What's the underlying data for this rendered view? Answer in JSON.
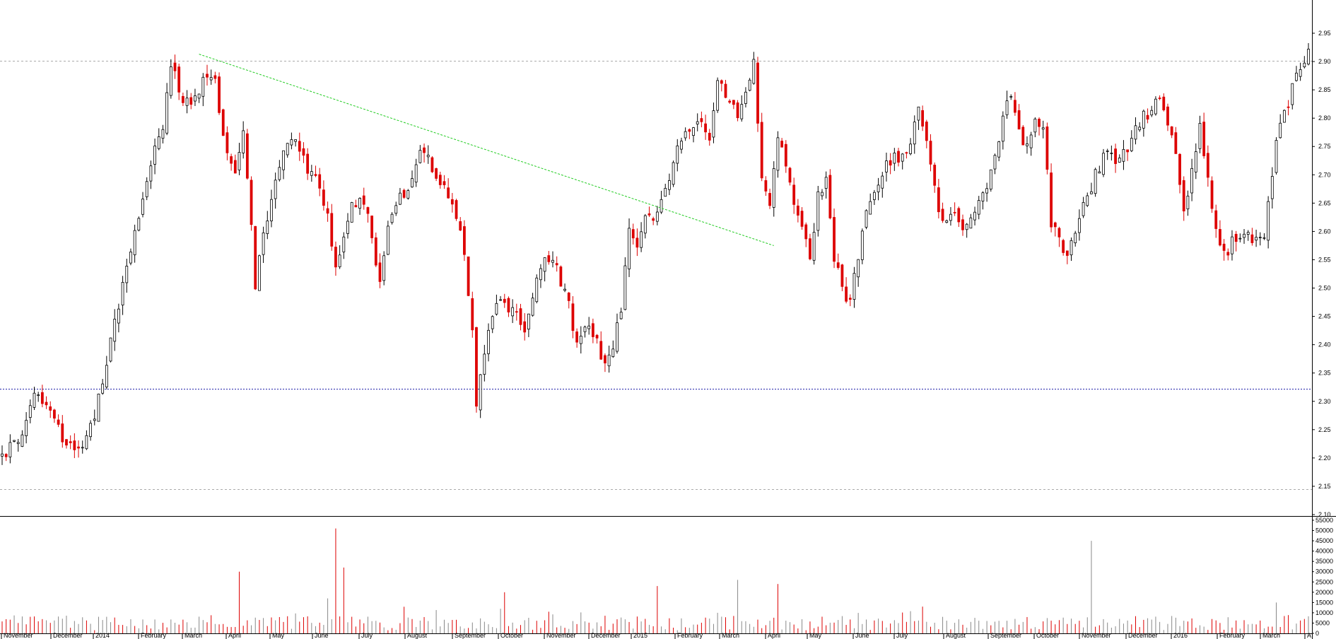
{
  "chart_data": [
    {
      "type": "candlestick",
      "panel": "price",
      "x_axis_months": [
        "November",
        "December",
        "2014",
        "February",
        "March",
        "April",
        "May",
        "June",
        "July",
        "August",
        "September",
        "October",
        "November",
        "December",
        "2015",
        "February",
        "March",
        "April",
        "May",
        "June",
        "July",
        "August",
        "September",
        "October",
        "November",
        "December",
        "2016",
        "February",
        "March",
        "A"
      ],
      "y_ticks": [
        "2.10",
        "2.15",
        "2.20",
        "2.25",
        "2.30",
        "2.35",
        "2.40",
        "2.45",
        "2.50",
        "2.55",
        "2.60",
        "2.65",
        "2.70",
        "2.75",
        "2.80",
        "2.85",
        "2.90",
        "2.95"
      ],
      "ylim": [
        2.1,
        2.98
      ],
      "up_color": "#000000",
      "down_color": "#dd0000",
      "trend_points": [
        [
          0,
          2.21
        ],
        [
          5,
          2.23
        ],
        [
          8,
          2.32
        ],
        [
          12,
          2.28
        ],
        [
          15,
          2.24
        ],
        [
          19,
          2.22
        ],
        [
          22,
          2.25
        ],
        [
          27,
          2.4
        ],
        [
          30,
          2.5
        ],
        [
          33,
          2.6
        ],
        [
          37,
          2.72
        ],
        [
          40,
          2.78
        ],
        [
          42,
          2.9
        ],
        [
          45,
          2.82
        ],
        [
          48,
          2.84
        ],
        [
          50,
          2.87
        ],
        [
          53,
          2.86
        ],
        [
          56,
          2.74
        ],
        [
          58,
          2.7
        ],
        [
          60,
          2.78
        ],
        [
          62,
          2.62
        ],
        [
          63,
          2.5
        ],
        [
          65,
          2.6
        ],
        [
          67,
          2.65
        ],
        [
          70,
          2.75
        ],
        [
          73,
          2.77
        ],
        [
          76,
          2.7
        ],
        [
          79,
          2.68
        ],
        [
          81,
          2.62
        ],
        [
          83,
          2.54
        ],
        [
          85,
          2.58
        ],
        [
          87,
          2.65
        ],
        [
          90,
          2.66
        ],
        [
          92,
          2.58
        ],
        [
          94,
          2.52
        ],
        [
          96,
          2.6
        ],
        [
          98,
          2.65
        ],
        [
          101,
          2.67
        ],
        [
          103,
          2.72
        ],
        [
          105,
          2.75
        ],
        [
          107,
          2.7
        ],
        [
          110,
          2.68
        ],
        [
          113,
          2.63
        ],
        [
          115,
          2.55
        ],
        [
          117,
          2.43
        ],
        [
          118,
          2.3
        ],
        [
          120,
          2.38
        ],
        [
          122,
          2.46
        ],
        [
          125,
          2.48
        ],
        [
          128,
          2.45
        ],
        [
          130,
          2.42
        ],
        [
          133,
          2.53
        ],
        [
          136,
          2.55
        ],
        [
          138,
          2.53
        ],
        [
          141,
          2.47
        ],
        [
          143,
          2.4
        ],
        [
          145,
          2.44
        ],
        [
          148,
          2.4
        ],
        [
          150,
          2.36
        ],
        [
          152,
          2.4
        ],
        [
          154,
          2.47
        ],
        [
          156,
          2.6
        ],
        [
          158,
          2.56
        ],
        [
          160,
          2.62
        ],
        [
          163,
          2.63
        ],
        [
          165,
          2.68
        ],
        [
          168,
          2.74
        ],
        [
          170,
          2.78
        ],
        [
          173,
          2.8
        ],
        [
          176,
          2.76
        ],
        [
          178,
          2.87
        ],
        [
          180,
          2.84
        ],
        [
          183,
          2.8
        ],
        [
          185,
          2.85
        ],
        [
          187,
          2.9
        ],
        [
          189,
          2.7
        ],
        [
          191,
          2.64
        ],
        [
          193,
          2.76
        ],
        [
          195,
          2.72
        ],
        [
          197,
          2.66
        ],
        [
          199,
          2.6
        ],
        [
          201,
          2.55
        ],
        [
          203,
          2.66
        ],
        [
          205,
          2.7
        ],
        [
          207,
          2.55
        ],
        [
          209,
          2.5
        ],
        [
          211,
          2.47
        ],
        [
          213,
          2.56
        ],
        [
          215,
          2.63
        ],
        [
          218,
          2.68
        ],
        [
          220,
          2.72
        ],
        [
          223,
          2.73
        ],
        [
          226,
          2.76
        ],
        [
          228,
          2.83
        ],
        [
          230,
          2.76
        ],
        [
          232,
          2.67
        ],
        [
          234,
          2.62
        ],
        [
          237,
          2.64
        ],
        [
          239,
          2.6
        ],
        [
          241,
          2.62
        ],
        [
          244,
          2.66
        ],
        [
          247,
          2.73
        ],
        [
          249,
          2.8
        ],
        [
          251,
          2.84
        ],
        [
          253,
          2.78
        ],
        [
          255,
          2.75
        ],
        [
          257,
          2.79
        ],
        [
          259,
          2.78
        ],
        [
          261,
          2.62
        ],
        [
          263,
          2.58
        ],
        [
          265,
          2.56
        ],
        [
          267,
          2.6
        ],
        [
          270,
          2.66
        ],
        [
          272,
          2.7
        ],
        [
          275,
          2.74
        ],
        [
          277,
          2.72
        ],
        [
          280,
          2.75
        ],
        [
          283,
          2.79
        ],
        [
          286,
          2.82
        ],
        [
          288,
          2.84
        ],
        [
          290,
          2.8
        ],
        [
          292,
          2.74
        ],
        [
          294,
          2.63
        ],
        [
          296,
          2.72
        ],
        [
          298,
          2.78
        ],
        [
          300,
          2.7
        ],
        [
          302,
          2.6
        ],
        [
          304,
          2.56
        ],
        [
          306,
          2.58
        ],
        [
          309,
          2.6
        ],
        [
          312,
          2.58
        ],
        [
          314,
          2.6
        ],
        [
          316,
          2.7
        ],
        [
          318,
          2.8
        ],
        [
          320,
          2.83
        ],
        [
          322,
          2.87
        ],
        [
          324,
          2.89
        ],
        [
          325,
          2.93
        ]
      ],
      "reference_lines": [
        {
          "label": "dashed-gray-upper",
          "y": 2.901,
          "color": "#aaaaaa"
        },
        {
          "label": "dashed-gray-lower",
          "y": 2.145,
          "color": "#aaaaaa"
        },
        {
          "label": "dotted-blue-support",
          "y": 2.322,
          "color": "#2222aa"
        }
      ],
      "trendline": {
        "color": "#22cc22",
        "from": [
          49,
          2.913
        ],
        "to": [
          192,
          2.575
        ]
      },
      "n_sessions": 326
    },
    {
      "type": "bar",
      "panel": "volume",
      "y_ticks": [
        "0",
        "5000",
        "10000",
        "15000",
        "20000",
        "25000",
        "30000",
        "35000",
        "40000",
        "45000",
        "50000",
        "55000"
      ],
      "ylim": [
        0,
        56000
      ],
      "spikes": [
        {
          "i": 59,
          "v": 30000
        },
        {
          "i": 83,
          "v": 51000
        },
        {
          "i": 85,
          "v": 32000
        },
        {
          "i": 81,
          "v": 17000
        },
        {
          "i": 125,
          "v": 20000
        },
        {
          "i": 163,
          "v": 23000
        },
        {
          "i": 183,
          "v": 26000
        },
        {
          "i": 193,
          "v": 24000
        },
        {
          "i": 271,
          "v": 45000
        },
        {
          "i": 229,
          "v": 13000
        },
        {
          "i": 317,
          "v": 15000
        }
      ]
    }
  ]
}
